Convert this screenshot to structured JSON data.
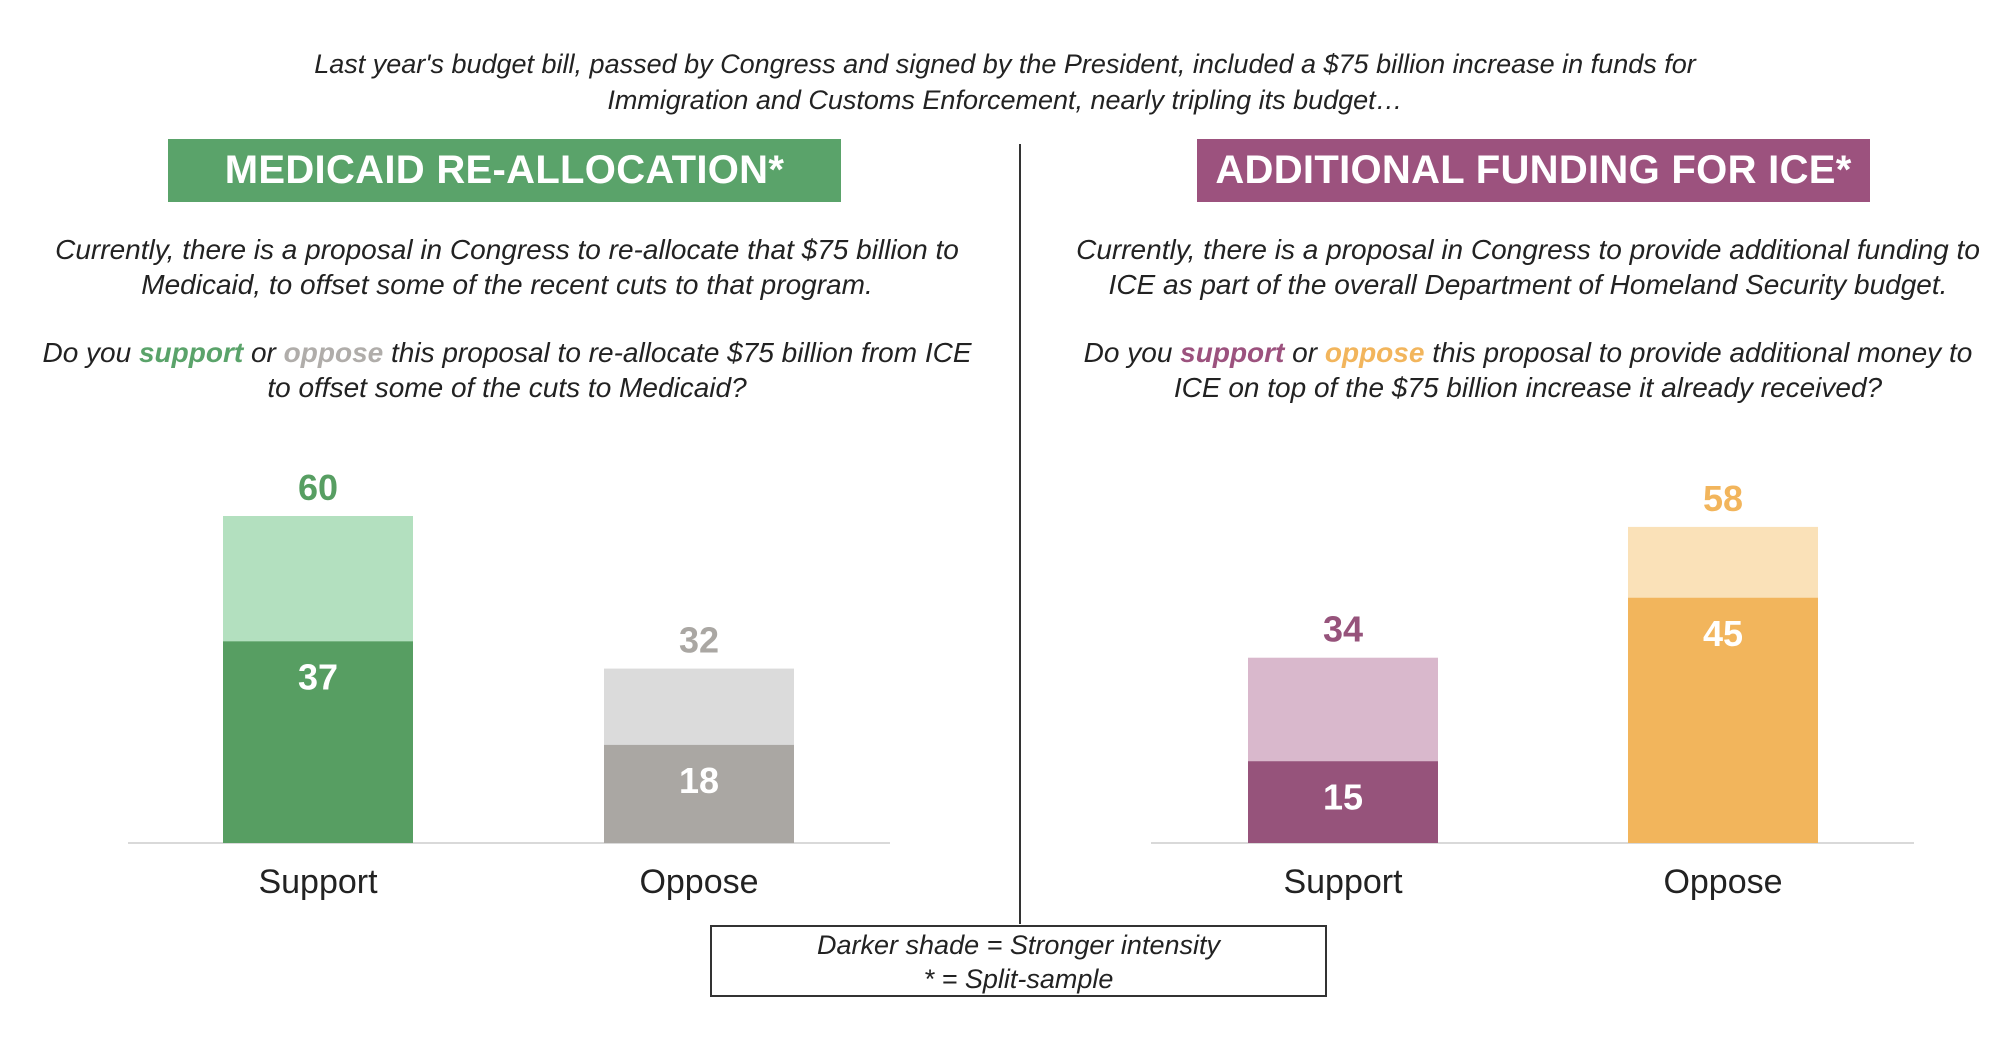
{
  "intro": {
    "line1": "Last year's budget bill, passed by Congress and signed by the President, included a $75 billion increase in funds for",
    "line2": "Immigration and Customs Enforcement, nearly tripling its budget…"
  },
  "left_panel": {
    "title": "MEDICAID RE-ALLOCATION*",
    "title_color": "#5aa36a",
    "desc_line1": "Currently, there is a proposal in Congress to re-allocate that $75 billion to",
    "desc_line2": "Medicaid, to offset some of the recent cuts to that program.",
    "q_prefix": "Do you ",
    "q_support": "support",
    "q_or": " or ",
    "q_oppose": "oppose",
    "q_suffix": " this proposal to re-allocate $75 billion from ICE",
    "q_line2": "to offset some of the cuts to Medicaid?",
    "support_word_color": "#5aa36a",
    "oppose_word_color": "#b0adaa"
  },
  "right_panel": {
    "title": "ADDITIONAL FUNDING FOR ICE*",
    "title_color": "#9c527e",
    "desc_line1": "Currently, there is a proposal in Congress to provide additional funding to",
    "desc_line2": "ICE as part of the overall Department of Homeland Security budget.",
    "q_prefix": "Do you ",
    "q_support": "support",
    "q_or": " or ",
    "q_oppose": "oppose",
    "q_suffix": " this proposal to provide additional money to",
    "q_line2": "ICE on top of the $75 billion increase it already received?",
    "support_word_color": "#9c527e",
    "oppose_word_color": "#f2b55c"
  },
  "chart_data": [
    {
      "type": "bar",
      "categories": [
        "Support",
        "Oppose"
      ],
      "series": [
        {
          "values": [
            37,
            18
          ]
        },
        {
          "values": [
            60,
            32
          ]
        }
      ],
      "colors": {
        "strong": [
          "#579e62",
          "#aaa7a3"
        ],
        "total": [
          "#b3e0bf",
          "#dbdbdb"
        ],
        "total_label": [
          "#579e62",
          "#aaa7a3"
        ]
      },
      "ylim": [
        0,
        60
      ],
      "grid": false
    },
    {
      "type": "bar",
      "categories": [
        "Support",
        "Oppose"
      ],
      "series": [
        {
          "values": [
            15,
            45
          ]
        },
        {
          "values": [
            34,
            58
          ]
        }
      ],
      "colors": {
        "strong": [
          "#96537b",
          "#f2b55c"
        ],
        "total": [
          "#d9b8cc",
          "#fae1b8"
        ],
        "total_label": [
          "#96537b",
          "#f2b55c"
        ]
      },
      "ylim": [
        0,
        60
      ],
      "grid": false
    }
  ],
  "legend": {
    "line1": "Darker shade = Stronger intensity",
    "line2": "* = Split-sample"
  }
}
